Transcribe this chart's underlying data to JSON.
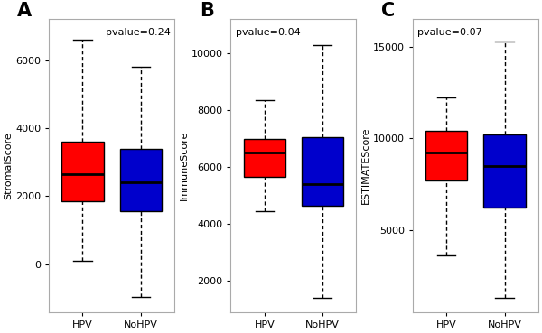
{
  "panels": [
    {
      "label": "A",
      "ylabel": "StromalScore",
      "pvalue": "pvalue=0.24",
      "pvalue_loc": "upper right",
      "ylim": [
        -1400,
        7200
      ],
      "yticks": [
        0,
        2000,
        4000,
        6000
      ],
      "hpv": {
        "whisker_low": 100,
        "q1": 1850,
        "median": 2650,
        "q3": 3600,
        "whisker_high": 6600
      },
      "nohpv": {
        "whisker_low": -950,
        "q1": 1550,
        "median": 2400,
        "q3": 3400,
        "whisker_high": 5800
      }
    },
    {
      "label": "B",
      "ylabel": "ImmuneScore",
      "pvalue": "pvalue=0.04",
      "pvalue_loc": "upper left",
      "ylim": [
        900,
        11200
      ],
      "yticks": [
        2000,
        4000,
        6000,
        8000,
        10000
      ],
      "hpv": {
        "whisker_low": 4450,
        "q1": 5650,
        "median": 6500,
        "q3": 7000,
        "whisker_high": 8350
      },
      "nohpv": {
        "whisker_low": 1400,
        "q1": 4650,
        "median": 5400,
        "q3": 7050,
        "whisker_high": 10300
      }
    },
    {
      "label": "C",
      "ylabel": "ESTIMATEScore",
      "pvalue": "pvalue=0.07",
      "pvalue_loc": "upper left",
      "ylim": [
        500,
        16500
      ],
      "yticks": [
        5000,
        10000,
        15000
      ],
      "hpv": {
        "whisker_low": 3600,
        "q1": 7700,
        "median": 9200,
        "q3": 10400,
        "whisker_high": 12200
      },
      "nohpv": {
        "whisker_low": 1300,
        "q1": 6200,
        "median": 8500,
        "q3": 10200,
        "whisker_high": 15300
      }
    }
  ],
  "hpv_color": "#FF0000",
  "nohpv_color": "#0000CC",
  "box_width": 0.72,
  "xlabels": [
    "HPV",
    "NoHPV"
  ],
  "spine_color": "#AAAAAA",
  "linewidth": 1.0,
  "median_linewidth": 2.0,
  "label_fontsize": 15,
  "tick_fontsize": 8,
  "pvalue_fontsize": 8,
  "ylabel_fontsize": 8
}
